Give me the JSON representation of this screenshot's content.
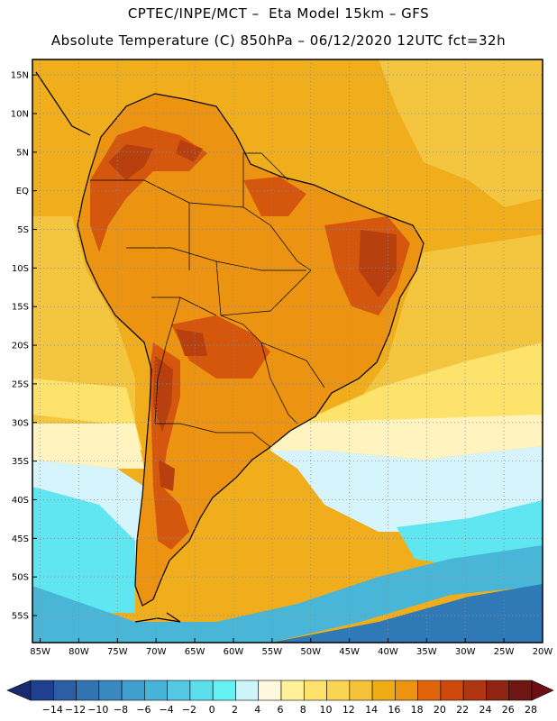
{
  "header": {
    "title_line1": "CPTEC/INPE/MCT –  Eta Model 15km – GFS",
    "title_line2": "Absolute Temperature (C) 850hPa – 06/12/2020 12UTC fct=32h"
  },
  "axes": {
    "lat_labels": [
      "15N",
      "10N",
      "5N",
      "EQ",
      "5S",
      "10S",
      "15S",
      "20S",
      "25S",
      "30S",
      "35S",
      "40S",
      "45S",
      "50S",
      "55S"
    ],
    "lon_labels": [
      "85W",
      "80W",
      "75W",
      "70W",
      "65W",
      "60W",
      "55W",
      "50W",
      "45W",
      "40W",
      "35W",
      "30W",
      "25W",
      "20W"
    ]
  },
  "colorbar": {
    "labels": [
      "-14",
      "-12",
      "-10",
      "-8",
      "-6",
      "-4",
      "-2",
      "0",
      "2",
      "4",
      "6",
      "8",
      "10",
      "12",
      "14",
      "16",
      "18",
      "20",
      "22",
      "24",
      "26",
      "28"
    ],
    "colors": [
      "#1f3f8f",
      "#2b5ea4",
      "#3274b2",
      "#3a88c0",
      "#3f9ecd",
      "#46b3d8",
      "#52c8e2",
      "#5cdeec",
      "#66f2f5",
      "#cdf4f9",
      "#fff8dd",
      "#fff09a",
      "#fde36b",
      "#f9d552",
      "#f5c33a",
      "#f0ac14",
      "#ec9311",
      "#e0650a",
      "#cf480e",
      "#b03612",
      "#8f2412",
      "#6e1612"
    ],
    "under_color": "#1a2a6e",
    "over_color": "#6e0e14"
  },
  "map_colors": {
    "ocean_warm": "#f0ae1c",
    "ocean_mid": "#f4c640",
    "ocean_light": "#fde36b",
    "ocean_pale": "#fff4c0",
    "cold_pale": "#d6f4fb",
    "cold_cyan": "#5fe6f0",
    "cold_mid": "#49b6d8",
    "cold_deep": "#2f79b6",
    "land_base": "#ec9311",
    "land_hot": "#d5570d",
    "land_hotter": "#b8400f",
    "coast": "#000000",
    "grid": "#8a8a8a"
  }
}
